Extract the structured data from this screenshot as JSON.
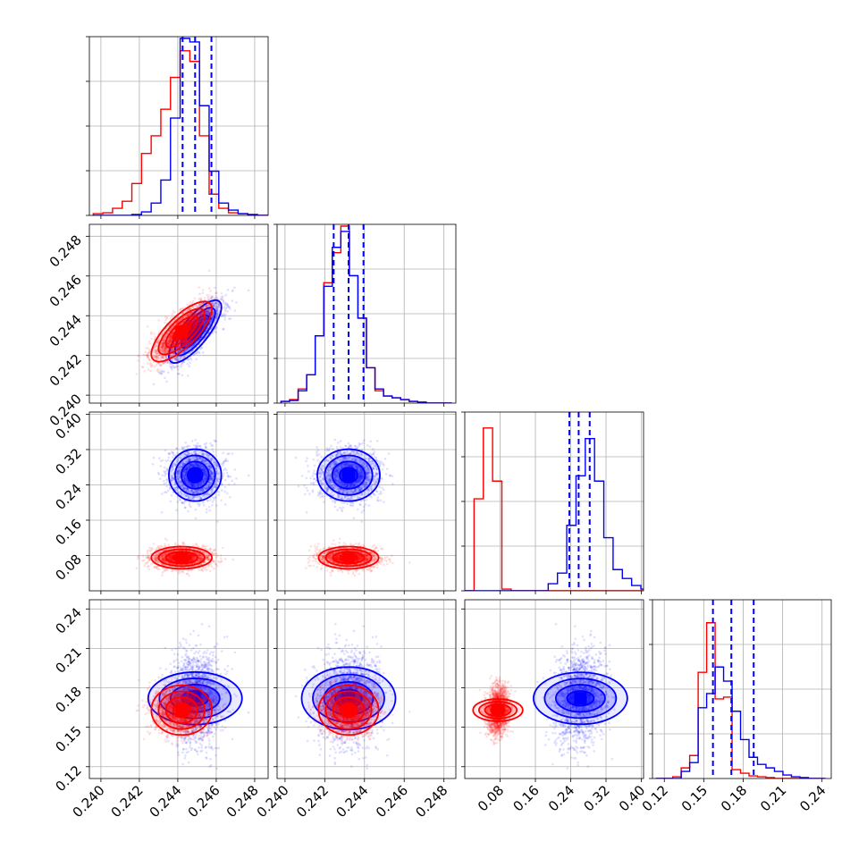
{
  "chart_data": {
    "type": "corner",
    "parameters": 4,
    "grid": true,
    "colors": {
      "blue": "#0000ff",
      "red": "#ff0000"
    },
    "quantiles_style": "dashed",
    "axes": [
      {
        "range": [
          0.2394,
          0.2487
        ],
        "ticks": [
          0.24,
          0.242,
          0.244,
          0.246,
          0.248
        ],
        "tick_labels": [
          "0.240",
          "0.242",
          "0.244",
          "0.246",
          "0.248"
        ]
      },
      {
        "range": [
          0.2396,
          0.2486
        ],
        "ticks": [
          0.24,
          0.242,
          0.244,
          0.246,
          0.248
        ],
        "tick_labels": [
          "0.240",
          "0.242",
          "0.244",
          "0.246",
          "0.248"
        ]
      },
      {
        "range": [
          0.0,
          0.405
        ],
        "ticks": [
          0.08,
          0.16,
          0.24,
          0.32,
          0.4
        ],
        "tick_labels": [
          "0.08",
          "0.16",
          "0.24",
          "0.32",
          "0.40"
        ]
      },
      {
        "range": [
          0.111,
          0.247
        ],
        "ticks": [
          0.12,
          0.15,
          0.18,
          0.21,
          0.24
        ],
        "tick_labels": [
          "0.12",
          "0.15",
          "0.18",
          "0.21",
          "0.24"
        ]
      }
    ],
    "series": [
      {
        "color": "#0000ff",
        "mean": [
          0.2449,
          0.2432,
          0.262,
          0.172
        ],
        "sd": [
          0.00065,
          0.00075,
          0.028,
          0.017
        ],
        "corr_01": 0.78,
        "quantiles": [
          [
            0.24425,
            0.2449,
            0.24575
          ],
          [
            0.24245,
            0.2432,
            0.24395
          ],
          [
            0.237,
            0.258,
            0.283
          ],
          [
            0.157,
            0.171,
            0.188
          ]
        ]
      },
      {
        "color": "#ff0000",
        "mean": [
          0.2442,
          0.2432,
          0.075,
          0.163
        ],
        "sd": [
          0.00075,
          0.00072,
          0.012,
          0.009
        ],
        "corr_01": 0.75,
        "quantiles": null
      }
    ],
    "histograms": [
      {
        "bins": [
          0.2396,
          0.24965,
          20
        ],
        "blue": [
          0,
          0,
          0,
          0,
          0.005,
          0.02,
          0.07,
          0.2,
          0.55,
          1.0,
          0.98,
          0.62,
          0.25,
          0.07,
          0.03,
          0.01,
          0.005,
          0,
          0,
          0
        ],
        "red": [
          0.01,
          0.015,
          0.04,
          0.08,
          0.18,
          0.35,
          0.45,
          0.6,
          0.78,
          0.93,
          0.87,
          0.45,
          0.12,
          0.04,
          0.015,
          0.01,
          0,
          0,
          0,
          0
        ]
      },
      {
        "bins": [
          0.2398,
          0.2484,
          20
        ],
        "blue": [
          0.01,
          0.015,
          0.07,
          0.16,
          0.38,
          0.66,
          0.88,
          0.97,
          0.72,
          0.48,
          0.2,
          0.08,
          0.04,
          0.03,
          0.02,
          0.01,
          0.005,
          0,
          0,
          0
        ],
        "red": [
          0.01,
          0.02,
          0.08,
          0.16,
          0.38,
          0.68,
          0.85,
          1.0,
          0.72,
          0.48,
          0.2,
          0.07,
          0.04,
          0.03,
          0.02,
          0.01,
          0.005,
          0,
          0,
          0
        ]
      },
      {
        "bins": [
          0.0,
          0.42,
          20
        ],
        "blue": [
          0,
          0,
          0,
          0,
          0,
          0,
          0,
          0,
          0,
          0.04,
          0.1,
          0.37,
          0.65,
          0.86,
          0.62,
          0.3,
          0.12,
          0.07,
          0.03,
          0.01
        ],
        "red": [
          0,
          0.52,
          0.92,
          0.62,
          0.01,
          0,
          0,
          0,
          0,
          0,
          0,
          0,
          0,
          0,
          0,
          0,
          0,
          0,
          0,
          0
        ]
      },
      {
        "bins": [
          0.1135,
          0.2425,
          20
        ],
        "blue": [
          0,
          0,
          0,
          0.04,
          0.09,
          0.4,
          0.48,
          0.63,
          0.55,
          0.38,
          0.22,
          0.12,
          0.08,
          0.06,
          0.04,
          0.02,
          0.01,
          0.005,
          0,
          0
        ],
        "red": [
          0,
          0,
          0.01,
          0.06,
          0.13,
          0.6,
          0.88,
          0.45,
          0.46,
          0.05,
          0.03,
          0.015,
          0.01,
          0.005,
          0,
          0,
          0,
          0,
          0,
          0
        ]
      }
    ]
  }
}
